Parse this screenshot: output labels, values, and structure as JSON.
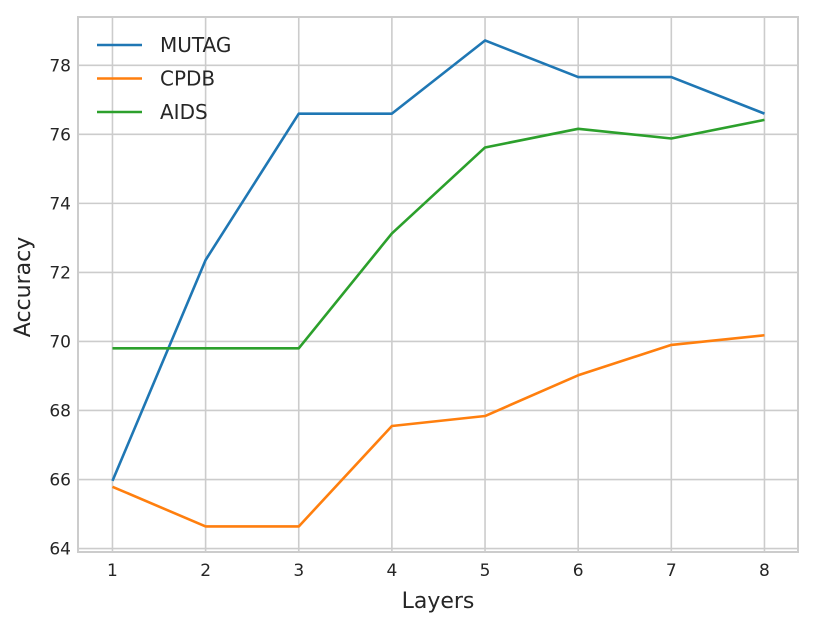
{
  "chart_data": {
    "type": "line",
    "title": "",
    "xlabel": "Layers",
    "ylabel": "Accuracy",
    "x": [
      1,
      2,
      3,
      4,
      5,
      6,
      7,
      8
    ],
    "xticks": [
      "1",
      "2",
      "3",
      "4",
      "5",
      "6",
      "7",
      "8"
    ],
    "yticks": [
      "64",
      "66",
      "68",
      "70",
      "72",
      "74",
      "76",
      "78"
    ],
    "xlim": [
      0.63,
      8.36
    ],
    "ylim": [
      63.9,
      79.4
    ],
    "grid": true,
    "legend_position": "upper left",
    "series": [
      {
        "name": "MUTAG",
        "color": "#1f77b4",
        "values": [
          65.96,
          72.36,
          76.6,
          76.6,
          78.72,
          77.66,
          77.66,
          76.6
        ]
      },
      {
        "name": "CPDB",
        "color": "#ff7f0e",
        "values": [
          65.79,
          64.64,
          64.64,
          67.55,
          67.84,
          69.02,
          69.9,
          70.18
        ]
      },
      {
        "name": "AIDS",
        "color": "#2ca02c",
        "values": [
          69.8,
          69.8,
          69.8,
          73.13,
          75.62,
          76.16,
          75.88,
          76.42
        ]
      }
    ]
  }
}
